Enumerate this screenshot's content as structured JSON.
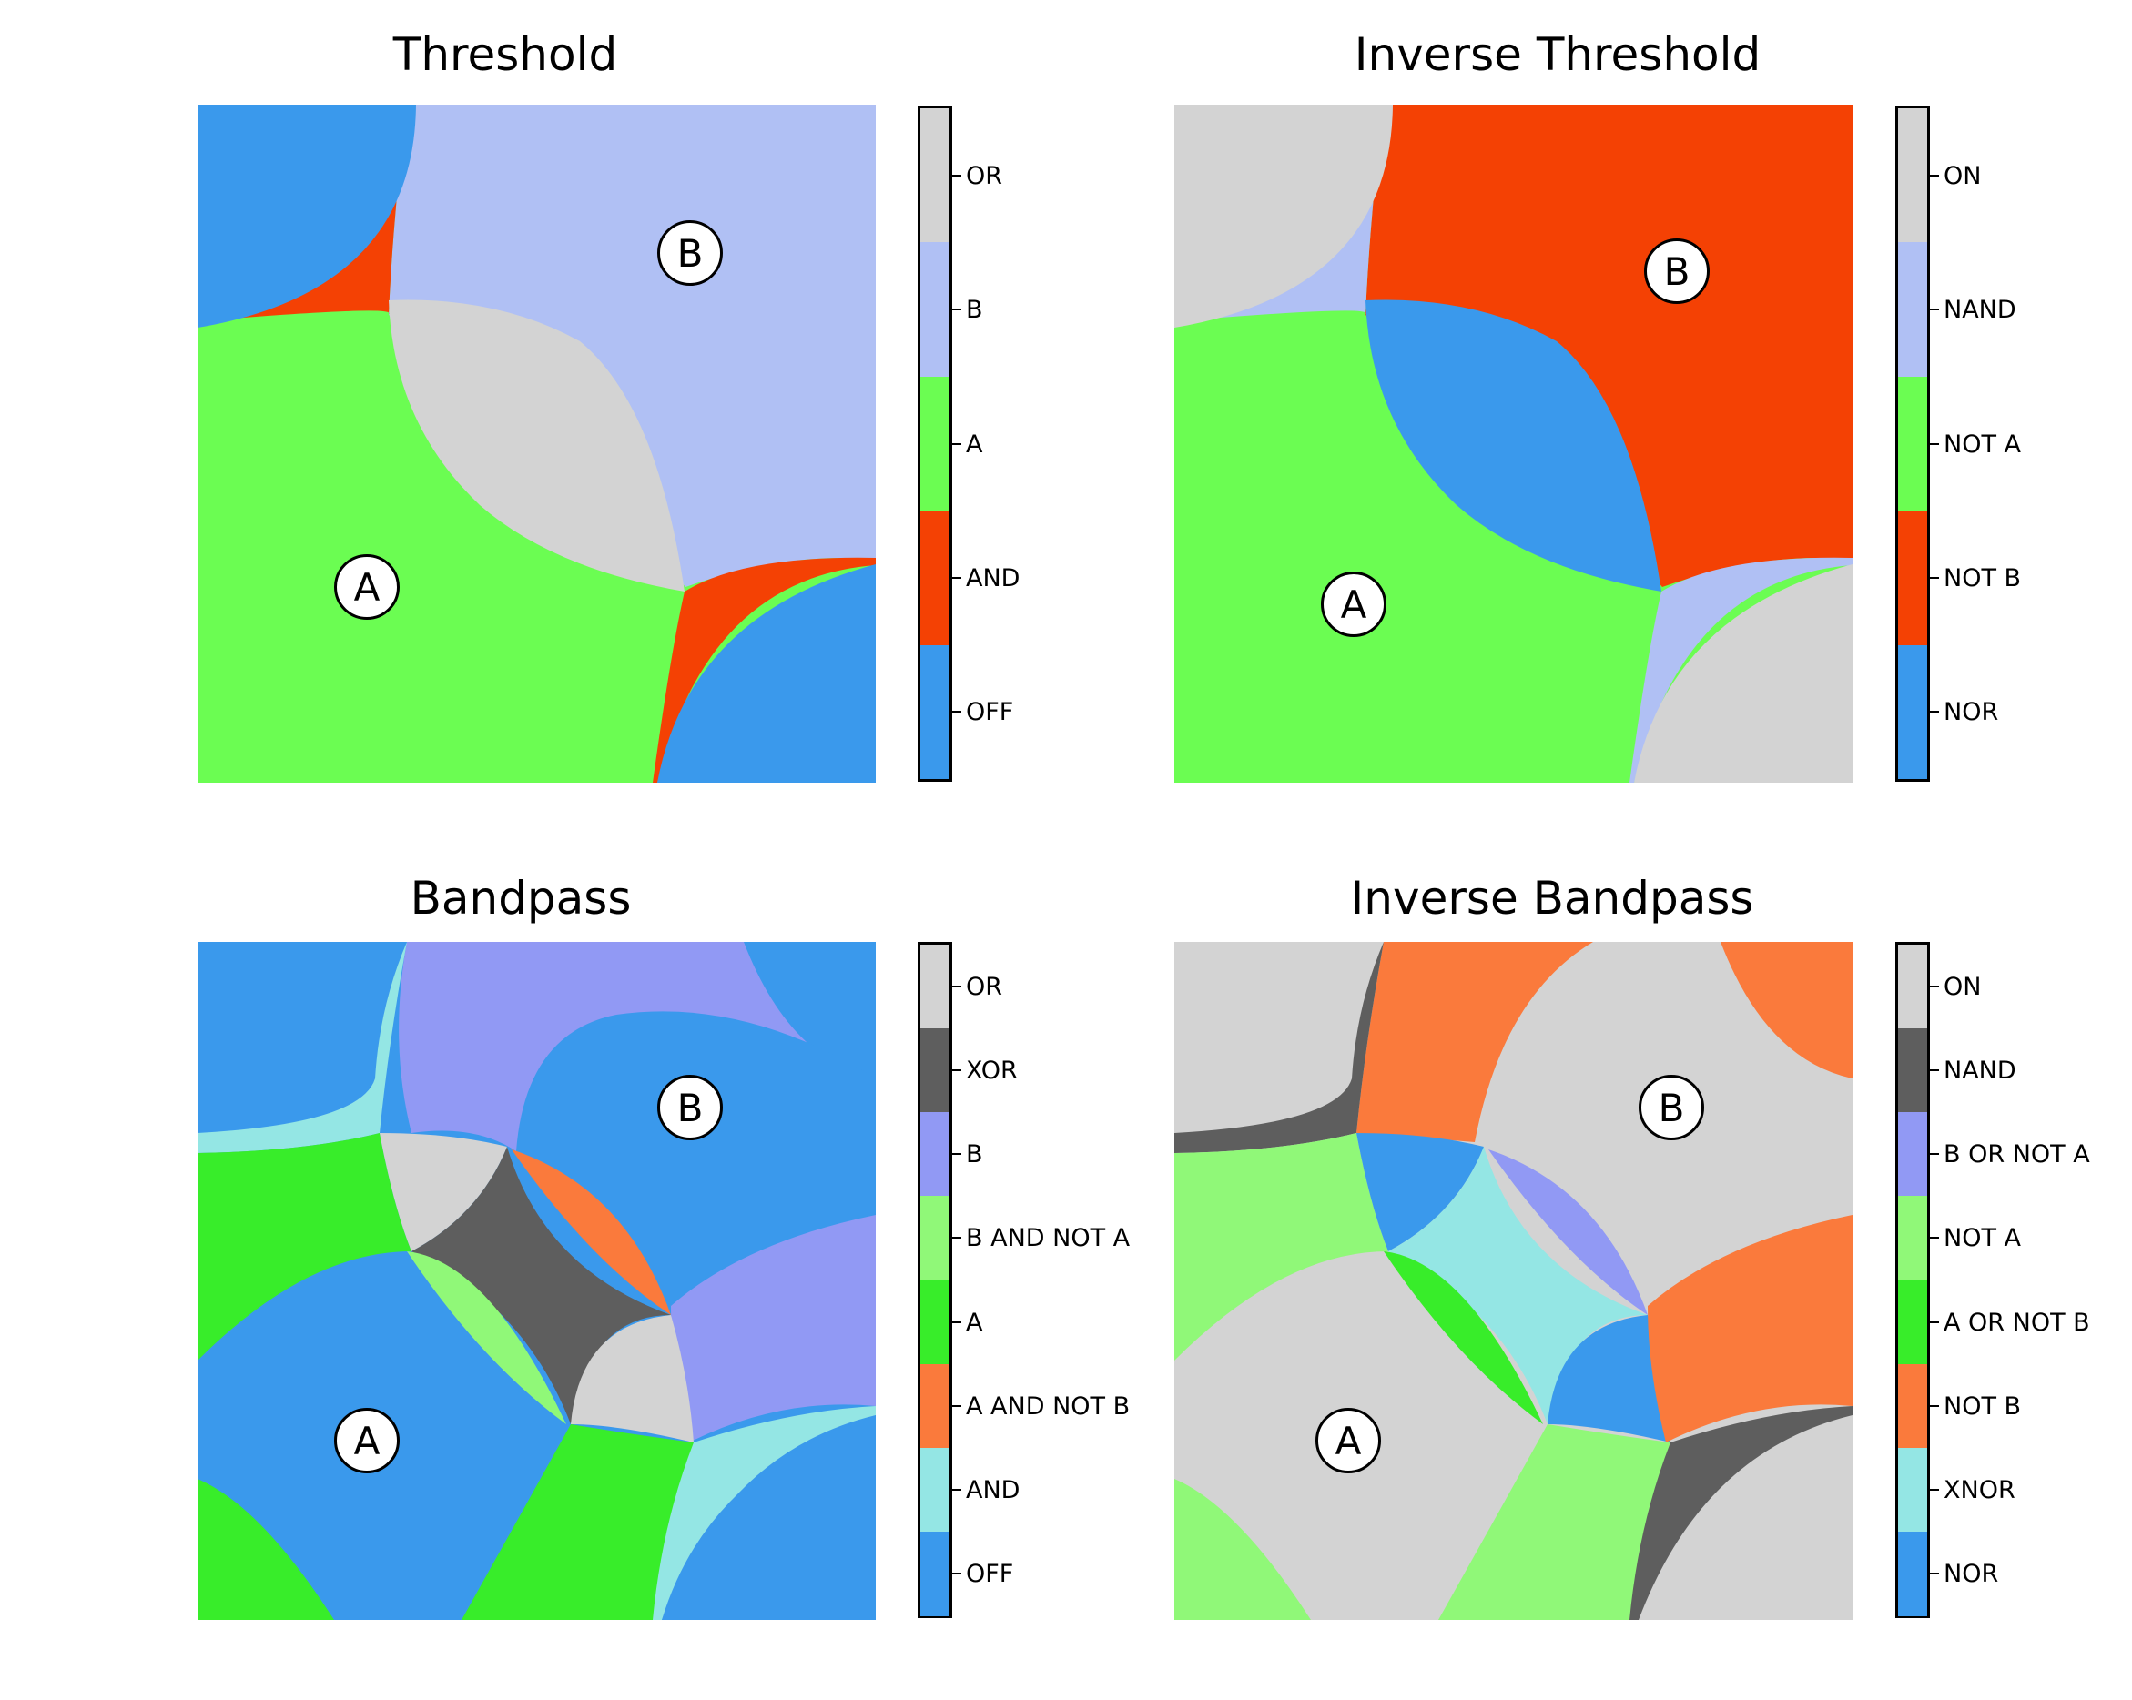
{
  "panels": [
    {
      "key": "threshold",
      "title": "Threshold",
      "colorbar": [
        {
          "label": "OR",
          "color": "#d3d3d3"
        },
        {
          "label": "B",
          "color": "#b0c0f4"
        },
        {
          "label": "A",
          "color": "#6bfd52"
        },
        {
          "label": "AND",
          "color": "#f44104"
        },
        {
          "label": "OFF",
          "color": "#3a99ec"
        }
      ],
      "markers": [
        "A",
        "B"
      ]
    },
    {
      "key": "inverse-threshold",
      "title": "Inverse Threshold",
      "colorbar": [
        {
          "label": "ON",
          "color": "#d3d3d3"
        },
        {
          "label": "NAND",
          "color": "#b0c0f4"
        },
        {
          "label": "NOT A",
          "color": "#6bfd52"
        },
        {
          "label": "NOT B",
          "color": "#f44104"
        },
        {
          "label": "NOR",
          "color": "#3a99ec"
        }
      ],
      "markers": [
        "A",
        "B"
      ]
    },
    {
      "key": "bandpass",
      "title": "Bandpass",
      "colorbar": [
        {
          "label": "OR",
          "color": "#d3d3d3"
        },
        {
          "label": "XOR",
          "color": "#5e5e5e"
        },
        {
          "label": "B",
          "color": "#9199f4"
        },
        {
          "label": "B AND NOT A",
          "color": "#90f878"
        },
        {
          "label": "A",
          "color": "#38ed2a"
        },
        {
          "label": "A AND NOT B",
          "color": "#fa7a3c"
        },
        {
          "label": "AND",
          "color": "#94e6e4"
        },
        {
          "label": "OFF",
          "color": "#3a99ec"
        }
      ],
      "markers": [
        "A",
        "B"
      ]
    },
    {
      "key": "inverse-bandpass",
      "title": "Inverse Bandpass",
      "colorbar": [
        {
          "label": "ON",
          "color": "#d3d3d3"
        },
        {
          "label": "NAND",
          "color": "#5e5e5e"
        },
        {
          "label": "B OR NOT A",
          "color": "#9199f4"
        },
        {
          "label": "NOT A",
          "color": "#90f878"
        },
        {
          "label": "A OR NOT B",
          "color": "#38ed2a"
        },
        {
          "label": "NOT B",
          "color": "#fa7a3c"
        },
        {
          "label": "XNOR",
          "color": "#94e6e4"
        },
        {
          "label": "NOR",
          "color": "#3a99ec"
        }
      ],
      "markers": [
        "A",
        "B"
      ]
    }
  ]
}
